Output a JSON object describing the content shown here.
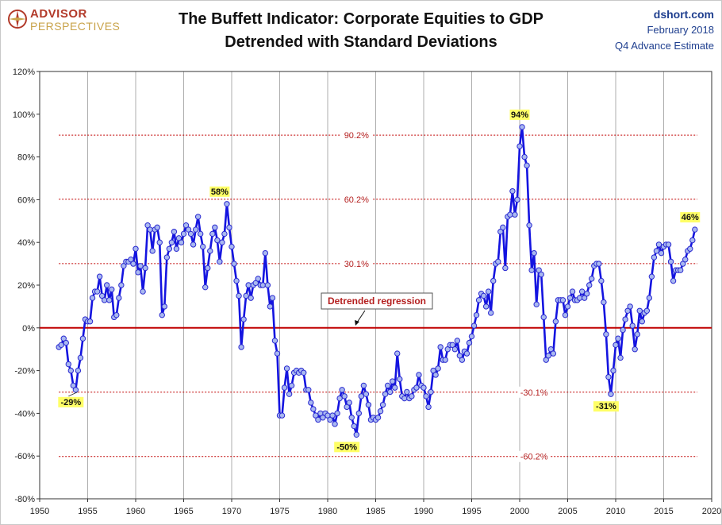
{
  "brand": {
    "line1": "ADVISOR",
    "line2": "PERSPECTIVES"
  },
  "source": {
    "site": "dshort.com",
    "date": "February 2018",
    "note": "Q4 Advance Estimate"
  },
  "colors": {
    "series": "#1414e0",
    "marker_fill": "#a9b8f0",
    "regression": "#c00000",
    "sd_lines": "#c00000",
    "peak_bg": "#ffff66"
  },
  "chart_data": {
    "type": "line",
    "title": "The Buffett Indicator: Corporate Equities to GDP",
    "subtitle": "Detrended with Standard Deviations",
    "xlabel": "",
    "ylabel": "",
    "xlim": [
      1950,
      2020
    ],
    "ylim": [
      -80,
      120
    ],
    "x_ticks": [
      "1950",
      "1955",
      "1960",
      "1965",
      "1970",
      "1975",
      "1980",
      "1985",
      "1990",
      "1995",
      "2000",
      "2005",
      "2010",
      "2015",
      "2020"
    ],
    "y_ticks": [
      "120%",
      "100%",
      "80%",
      "60%",
      "40%",
      "20%",
      "0%",
      "-20%",
      "-40%",
      "-60%",
      "-80%"
    ],
    "grid": "vertical",
    "regression_label": "Detrended regression",
    "sd_lines": [
      {
        "value": 90.2,
        "label": "90.2%"
      },
      {
        "value": 60.2,
        "label": "60.2%"
      },
      {
        "value": 30.1,
        "label": "30.1%"
      },
      {
        "value": -30.1,
        "label": "-30.1%"
      },
      {
        "value": -60.2,
        "label": "-60.2%"
      }
    ],
    "peak_labels": [
      {
        "x": 1953.25,
        "y": -29,
        "label": "-29%"
      },
      {
        "x": 1968.75,
        "y": 58,
        "label": "58%"
      },
      {
        "x": 1982.0,
        "y": -50,
        "label": "-50%"
      },
      {
        "x": 2000.0,
        "y": 94,
        "label": "94%"
      },
      {
        "x": 2009.0,
        "y": -31,
        "label": "-31%"
      },
      {
        "x": 2017.75,
        "y": 46,
        "label": "46%"
      }
    ],
    "series": [
      {
        "values": [
          [
            1952.0,
            -9
          ],
          [
            1952.25,
            -8
          ],
          [
            1952.5,
            -5
          ],
          [
            1952.75,
            -7
          ],
          [
            1953.0,
            -17
          ],
          [
            1953.25,
            -20
          ],
          [
            1953.5,
            -27
          ],
          [
            1953.75,
            -29
          ],
          [
            1954.0,
            -20
          ],
          [
            1954.25,
            -14
          ],
          [
            1954.5,
            -5
          ],
          [
            1954.75,
            4
          ],
          [
            1955.0,
            3
          ],
          [
            1955.25,
            3
          ],
          [
            1955.5,
            14
          ],
          [
            1955.75,
            17
          ],
          [
            1956.0,
            17
          ],
          [
            1956.25,
            24
          ],
          [
            1956.5,
            15
          ],
          [
            1956.75,
            13
          ],
          [
            1957.0,
            20
          ],
          [
            1957.25,
            13
          ],
          [
            1957.5,
            18
          ],
          [
            1957.75,
            5
          ],
          [
            1958.0,
            6
          ],
          [
            1958.25,
            14
          ],
          [
            1958.5,
            20
          ],
          [
            1958.75,
            29
          ],
          [
            1959.0,
            31
          ],
          [
            1959.25,
            31
          ],
          [
            1959.5,
            32
          ],
          [
            1959.75,
            30
          ],
          [
            1960.0,
            37
          ],
          [
            1960.25,
            26
          ],
          [
            1960.5,
            29
          ],
          [
            1960.75,
            17
          ],
          [
            1961.0,
            28
          ],
          [
            1961.25,
            48
          ],
          [
            1961.5,
            46
          ],
          [
            1961.75,
            36
          ],
          [
            1962.0,
            46
          ],
          [
            1962.25,
            47
          ],
          [
            1962.5,
            40
          ],
          [
            1962.75,
            6
          ],
          [
            1963.0,
            10
          ],
          [
            1963.25,
            33
          ],
          [
            1963.5,
            37
          ],
          [
            1963.75,
            40
          ],
          [
            1964.0,
            45
          ],
          [
            1964.25,
            37
          ],
          [
            1964.5,
            42
          ],
          [
            1964.75,
            40
          ],
          [
            1965.0,
            44
          ],
          [
            1965.25,
            48
          ],
          [
            1965.5,
            46
          ],
          [
            1965.75,
            44
          ],
          [
            1966.0,
            39
          ],
          [
            1966.25,
            46
          ],
          [
            1966.5,
            52
          ],
          [
            1966.75,
            44
          ],
          [
            1967.0,
            38
          ],
          [
            1967.25,
            19
          ],
          [
            1967.5,
            28
          ],
          [
            1967.75,
            36
          ],
          [
            1968.0,
            44
          ],
          [
            1968.25,
            47
          ],
          [
            1968.5,
            41
          ],
          [
            1968.75,
            31
          ],
          [
            1969.0,
            40
          ],
          [
            1969.25,
            44
          ],
          [
            1969.5,
            58
          ],
          [
            1969.75,
            47
          ],
          [
            1970.0,
            38
          ],
          [
            1970.25,
            30
          ],
          [
            1970.5,
            22
          ],
          [
            1970.75,
            15
          ],
          [
            1971.0,
            -9
          ],
          [
            1971.25,
            4
          ],
          [
            1971.5,
            15
          ],
          [
            1971.75,
            20
          ],
          [
            1972.0,
            14
          ],
          [
            1972.25,
            20
          ],
          [
            1972.5,
            21
          ],
          [
            1972.75,
            23
          ],
          [
            1973.0,
            20
          ],
          [
            1973.25,
            20
          ],
          [
            1973.5,
            35
          ],
          [
            1973.75,
            20
          ],
          [
            1974.0,
            10
          ],
          [
            1974.25,
            14
          ],
          [
            1974.5,
            -6
          ],
          [
            1974.75,
            -12
          ],
          [
            1975.0,
            -41
          ],
          [
            1975.25,
            -41
          ],
          [
            1975.5,
            -28
          ],
          [
            1975.75,
            -19
          ],
          [
            1976.0,
            -31
          ],
          [
            1976.25,
            -27
          ],
          [
            1976.5,
            -21
          ],
          [
            1976.75,
            -20
          ],
          [
            1977.0,
            -21
          ],
          [
            1977.25,
            -20
          ],
          [
            1977.5,
            -21
          ],
          [
            1977.75,
            -29
          ],
          [
            1978.0,
            -29
          ],
          [
            1978.25,
            -35
          ],
          [
            1978.5,
            -38
          ],
          [
            1978.75,
            -41
          ],
          [
            1979.0,
            -43
          ],
          [
            1979.25,
            -40
          ],
          [
            1979.5,
            -42
          ],
          [
            1979.75,
            -40
          ],
          [
            1980.0,
            -41
          ],
          [
            1980.25,
            -43
          ],
          [
            1980.5,
            -41
          ],
          [
            1980.75,
            -45
          ],
          [
            1981.0,
            -40
          ],
          [
            1981.25,
            -33
          ],
          [
            1981.5,
            -29
          ],
          [
            1981.75,
            -32
          ],
          [
            1982.0,
            -37
          ],
          [
            1982.25,
            -35
          ],
          [
            1982.5,
            -42
          ],
          [
            1982.75,
            -46
          ],
          [
            1983.0,
            -50
          ],
          [
            1983.25,
            -40
          ],
          [
            1983.5,
            -32
          ],
          [
            1983.75,
            -27
          ],
          [
            1984.0,
            -31
          ],
          [
            1984.25,
            -36
          ],
          [
            1984.5,
            -43
          ],
          [
            1984.75,
            -42
          ],
          [
            1985.0,
            -43
          ],
          [
            1985.25,
            -42
          ],
          [
            1985.5,
            -39
          ],
          [
            1985.75,
            -36
          ],
          [
            1986.0,
            -31
          ],
          [
            1986.25,
            -27
          ],
          [
            1986.5,
            -30
          ],
          [
            1986.75,
            -25
          ],
          [
            1987.0,
            -28
          ],
          [
            1987.25,
            -12
          ],
          [
            1987.5,
            -24
          ],
          [
            1987.75,
            -32
          ],
          [
            1988.0,
            -33
          ],
          [
            1988.25,
            -30
          ],
          [
            1988.5,
            -33
          ],
          [
            1988.75,
            -32
          ],
          [
            1989.0,
            -29
          ],
          [
            1989.25,
            -28
          ],
          [
            1989.5,
            -22
          ],
          [
            1989.75,
            -27
          ],
          [
            1990.0,
            -28
          ],
          [
            1990.25,
            -32
          ],
          [
            1990.5,
            -37
          ],
          [
            1990.75,
            -30
          ],
          [
            1991.0,
            -20
          ],
          [
            1991.25,
            -22
          ],
          [
            1991.5,
            -19
          ],
          [
            1991.75,
            -9
          ],
          [
            1992.0,
            -15
          ],
          [
            1992.25,
            -15
          ],
          [
            1992.5,
            -10
          ],
          [
            1992.75,
            -8
          ],
          [
            1993.0,
            -8
          ],
          [
            1993.25,
            -10
          ],
          [
            1993.5,
            -6
          ],
          [
            1993.75,
            -13
          ],
          [
            1994.0,
            -15
          ],
          [
            1994.25,
            -11
          ],
          [
            1994.5,
            -12
          ],
          [
            1994.75,
            -7
          ],
          [
            1995.0,
            -4
          ],
          [
            1995.25,
            1
          ],
          [
            1995.5,
            6
          ],
          [
            1995.75,
            13
          ],
          [
            1996.0,
            16
          ],
          [
            1996.25,
            15
          ],
          [
            1996.5,
            10
          ],
          [
            1996.75,
            17
          ],
          [
            1997.0,
            7
          ],
          [
            1997.25,
            22
          ],
          [
            1997.5,
            30
          ],
          [
            1997.75,
            31
          ],
          [
            1998.0,
            45
          ],
          [
            1998.25,
            47
          ],
          [
            1998.5,
            28
          ],
          [
            1998.75,
            52
          ],
          [
            1999.0,
            53
          ],
          [
            1999.25,
            64
          ],
          [
            1999.5,
            53
          ],
          [
            1999.75,
            60
          ],
          [
            2000.0,
            85
          ],
          [
            2000.25,
            94
          ],
          [
            2000.5,
            80
          ],
          [
            2000.75,
            76
          ],
          [
            2001.0,
            48
          ],
          [
            2001.25,
            27
          ],
          [
            2001.5,
            35
          ],
          [
            2001.75,
            11
          ],
          [
            2002.0,
            27
          ],
          [
            2002.25,
            25
          ],
          [
            2002.5,
            5
          ],
          [
            2002.75,
            -15
          ],
          [
            2003.0,
            -13
          ],
          [
            2003.25,
            -10
          ],
          [
            2003.5,
            -12
          ],
          [
            2003.75,
            3
          ],
          [
            2004.0,
            13
          ],
          [
            2004.25,
            13
          ],
          [
            2004.5,
            13
          ],
          [
            2004.75,
            6
          ],
          [
            2005.0,
            10
          ],
          [
            2005.25,
            14
          ],
          [
            2005.5,
            17
          ],
          [
            2005.75,
            13
          ],
          [
            2006.0,
            13
          ],
          [
            2006.25,
            14
          ],
          [
            2006.5,
            17
          ],
          [
            2006.75,
            14
          ],
          [
            2007.0,
            16
          ],
          [
            2007.25,
            20
          ],
          [
            2007.5,
            23
          ],
          [
            2007.75,
            29
          ],
          [
            2008.0,
            30
          ],
          [
            2008.25,
            30
          ],
          [
            2008.5,
            22
          ],
          [
            2008.75,
            12
          ],
          [
            2009.0,
            -3
          ],
          [
            2009.25,
            -23
          ],
          [
            2009.5,
            -31
          ],
          [
            2009.75,
            -20
          ],
          [
            2010.0,
            -8
          ],
          [
            2010.25,
            -5
          ],
          [
            2010.5,
            -14
          ],
          [
            2010.75,
            -1
          ],
          [
            2011.0,
            4
          ],
          [
            2011.25,
            8
          ],
          [
            2011.5,
            10
          ],
          [
            2011.75,
            1
          ],
          [
            2012.0,
            -10
          ],
          [
            2012.25,
            -3
          ],
          [
            2012.5,
            8
          ],
          [
            2012.75,
            3
          ],
          [
            2013.0,
            7
          ],
          [
            2013.25,
            8
          ],
          [
            2013.5,
            14
          ],
          [
            2013.75,
            24
          ],
          [
            2014.0,
            33
          ],
          [
            2014.25,
            36
          ],
          [
            2014.5,
            39
          ],
          [
            2014.75,
            35
          ],
          [
            2015.0,
            38
          ],
          [
            2015.25,
            39
          ],
          [
            2015.5,
            39
          ],
          [
            2015.75,
            31
          ],
          [
            2016.0,
            22
          ],
          [
            2016.25,
            27
          ],
          [
            2016.5,
            27
          ],
          [
            2016.75,
            27
          ],
          [
            2017.0,
            30
          ],
          [
            2017.25,
            32
          ],
          [
            2017.5,
            36
          ],
          [
            2017.75,
            37
          ],
          [
            2018.0,
            41
          ],
          [
            2018.25,
            46
          ]
        ]
      }
    ]
  }
}
